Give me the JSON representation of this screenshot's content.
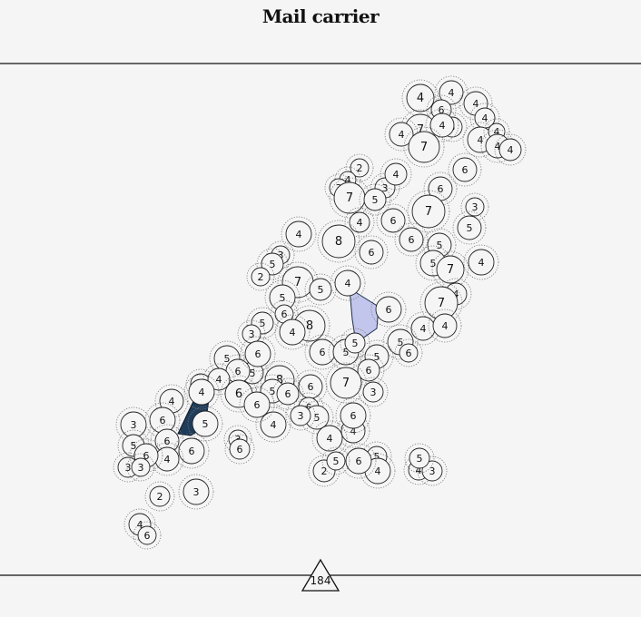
{
  "title": "Mail carrier",
  "counter": {
    "value": "184",
    "icon": "triangle-icon"
  },
  "colors": {
    "background": "#f6f5f6",
    "line": "#111111",
    "highlight_light": "#c3c6ec",
    "highlight_dark": "#1f3c5b"
  },
  "bubbles": [
    {
      "n": "4"
    },
    {
      "n": "4"
    },
    {
      "n": "4"
    },
    {
      "n": "6"
    },
    {
      "n": "4"
    },
    {
      "n": "5"
    },
    {
      "n": "7"
    },
    {
      "n": "4"
    },
    {
      "n": "4"
    },
    {
      "n": "7"
    },
    {
      "n": "4"
    },
    {
      "n": "4"
    },
    {
      "n": "4"
    },
    {
      "n": "4"
    },
    {
      "n": "6"
    },
    {
      "n": "2"
    },
    {
      "n": "4"
    },
    {
      "n": "3"
    },
    {
      "n": "3"
    },
    {
      "n": "7"
    },
    {
      "n": "5"
    },
    {
      "n": "6"
    },
    {
      "n": "4"
    },
    {
      "n": "7"
    },
    {
      "n": "6"
    },
    {
      "n": "3"
    },
    {
      "n": "5"
    },
    {
      "n": "4"
    },
    {
      "n": "8"
    },
    {
      "n": "6"
    },
    {
      "n": "6"
    },
    {
      "n": "5"
    },
    {
      "n": "5"
    },
    {
      "n": "7"
    },
    {
      "n": "4"
    },
    {
      "n": "4"
    },
    {
      "n": "3"
    },
    {
      "n": "5"
    },
    {
      "n": "2"
    },
    {
      "n": "7"
    },
    {
      "n": "5"
    },
    {
      "n": "5"
    },
    {
      "n": "4"
    },
    {
      "n": "6"
    },
    {
      "n": "7"
    },
    {
      "n": "4"
    },
    {
      "n": "4"
    },
    {
      "n": "4"
    },
    {
      "n": "5"
    },
    {
      "n": "3"
    },
    {
      "n": "8"
    },
    {
      "n": "4"
    },
    {
      "n": "6"
    },
    {
      "n": "5"
    },
    {
      "n": "5"
    },
    {
      "n": "5"
    },
    {
      "n": "6"
    },
    {
      "n": "5"
    },
    {
      "n": "6"
    },
    {
      "n": "6"
    },
    {
      "n": "5"
    },
    {
      "n": "5"
    },
    {
      "n": "6"
    },
    {
      "n": "4"
    },
    {
      "n": "4"
    },
    {
      "n": "6"
    },
    {
      "n": "8"
    },
    {
      "n": "6"
    },
    {
      "n": "6"
    },
    {
      "n": "5"
    },
    {
      "n": "6"
    },
    {
      "n": "7"
    },
    {
      "n": "6"
    },
    {
      "n": "3"
    },
    {
      "n": "4"
    },
    {
      "n": "5"
    },
    {
      "n": "6"
    },
    {
      "n": "3"
    },
    {
      "n": "6"
    },
    {
      "n": "5"
    },
    {
      "n": "6"
    },
    {
      "n": "4"
    },
    {
      "n": "4"
    },
    {
      "n": "4"
    },
    {
      "n": "6"
    },
    {
      "n": "5"
    },
    {
      "n": "4"
    },
    {
      "n": "4"
    },
    {
      "n": "6"
    },
    {
      "n": "5"
    },
    {
      "n": "4"
    },
    {
      "n": "6"
    },
    {
      "n": "2"
    },
    {
      "n": "5"
    },
    {
      "n": "3"
    },
    {
      "n": "3"
    },
    {
      "n": "6"
    },
    {
      "n": "3"
    },
    {
      "n": "6"
    },
    {
      "n": "3"
    },
    {
      "n": "3"
    },
    {
      "n": "2"
    },
    {
      "n": "4"
    },
    {
      "n": "6"
    },
    {
      "n": "4"
    },
    {
      "n": "3"
    },
    {
      "n": "5"
    },
    {
      "n": "6"
    },
    {
      "n": "4"
    },
    {
      "n": "2"
    },
    {
      "n": "3"
    },
    {
      "n": "4"
    },
    {
      "n": "2"
    },
    {
      "n": "3"
    },
    {
      "n": "6"
    },
    {
      "n": "3"
    },
    {
      "n": "2"
    }
  ]
}
